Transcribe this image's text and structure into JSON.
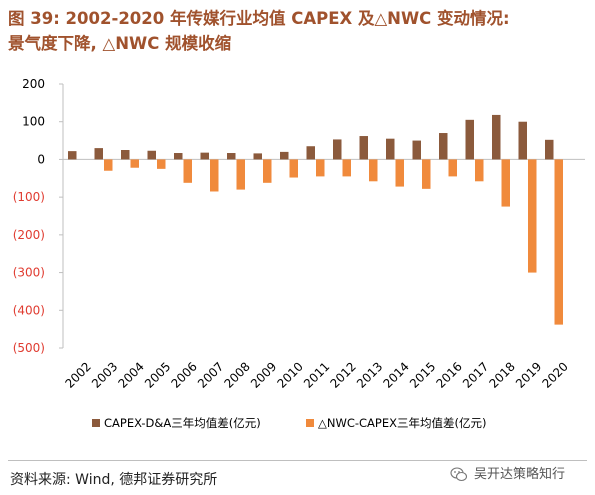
{
  "header": {
    "title_line1": "图 39: 2002-2020 年传媒行业均值 CAPEX 及△NWC 变动情况:",
    "title_line2": "景气度下降, △NWC 规模收缩"
  },
  "footer": {
    "source": "资料来源: Wind, 德邦证券研究所",
    "watermark": "吴开达策略知行",
    "watermark_icon": "wechat-icon"
  },
  "colors": {
    "capex": "#8B5A3C",
    "nwc": "#F08A3C",
    "neg_tick": "#E03C31",
    "axis": "#bfbfbf"
  },
  "chart_data": {
    "type": "bar",
    "categories": [
      "2002",
      "2003",
      "2004",
      "2005",
      "2006",
      "2007",
      "2008",
      "2009",
      "2010",
      "2011",
      "2012",
      "2013",
      "2014",
      "2015",
      "2016",
      "2017",
      "2018",
      "2019",
      "2020"
    ],
    "series": [
      {
        "name": "CAPEX-D&A三年均值差(亿元)",
        "values": [
          22,
          30,
          25,
          23,
          17,
          18,
          17,
          16,
          20,
          35,
          53,
          62,
          55,
          50,
          70,
          105,
          118,
          100,
          52
        ]
      },
      {
        "name": "△NWC-CAPEX三年均值差(亿元)",
        "values": [
          0,
          -30,
          -22,
          -25,
          -62,
          -85,
          -80,
          -62,
          -48,
          -45,
          -45,
          -58,
          -72,
          -78,
          -45,
          -58,
          -125,
          -300,
          -438
        ]
      }
    ],
    "ylim": [
      -500,
      200
    ],
    "yticks": [
      200,
      100,
      0,
      -100,
      -200,
      -300,
      -400,
      -500
    ],
    "ytick_labels": [
      "200",
      "100",
      "0",
      "(100)",
      "(200)",
      "(300)",
      "(400)",
      "(500)"
    ],
    "legend_position": "bottom",
    "grid": false
  }
}
